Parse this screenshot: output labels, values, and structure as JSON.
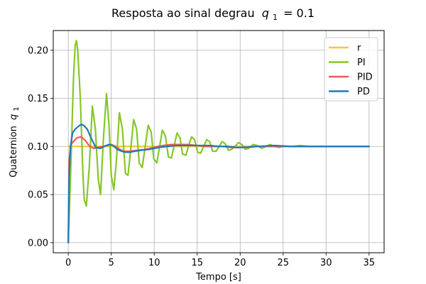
{
  "chart_data": {
    "type": "line",
    "title": "Resposta ao sinal degrau",
    "title_math_symbol": "q",
    "title_math_subscript": "1",
    "title_math_value": "= 0.1",
    "xlabel": "Tempo [s]",
    "ylabel": "Quaternion",
    "ylabel_math_symbol": "q",
    "ylabel_math_subscript": "1",
    "xlim": [
      -1.75,
      36.75
    ],
    "ylim": [
      -0.0105,
      0.2205
    ],
    "xticks": [
      0,
      5,
      10,
      15,
      20,
      25,
      30,
      35
    ],
    "xtick_labels": [
      "0",
      "5",
      "10",
      "15",
      "20",
      "25",
      "30",
      "35"
    ],
    "yticks": [
      0.0,
      0.05,
      0.1,
      0.15,
      0.2
    ],
    "ytick_labels": [
      "0.00",
      "0.05",
      "0.10",
      "0.15",
      "0.20"
    ],
    "grid": true,
    "legend_position": "top-right",
    "series": [
      {
        "name": "r",
        "color": "#f5c542",
        "x": [
          0,
          0.05,
          35
        ],
        "y": [
          0.1,
          0.1,
          0.1
        ]
      },
      {
        "name": "PI",
        "color": "#86c728",
        "x": [
          0,
          0.3,
          0.6,
          0.8,
          0.95,
          1.1,
          1.4,
          1.7,
          1.85,
          2.1,
          2.45,
          2.8,
          3.15,
          3.5,
          3.75,
          4.1,
          4.45,
          4.75,
          5.0,
          5.3,
          5.6,
          5.95,
          6.3,
          6.65,
          6.95,
          7.3,
          7.6,
          7.95,
          8.25,
          8.6,
          8.95,
          9.3,
          9.65,
          9.95,
          10.3,
          10.65,
          10.95,
          11.3,
          11.65,
          12.0,
          12.35,
          12.65,
          13.0,
          13.3,
          13.7,
          14.0,
          14.35,
          14.7,
          15.05,
          15.4,
          15.75,
          16.1,
          16.45,
          16.8,
          17.2,
          17.55,
          17.9,
          18.25,
          18.65,
          19.0,
          19.4,
          19.8,
          20.2,
          20.6,
          21.0,
          21.5,
          22.0,
          22.5,
          23.0,
          23.5,
          24.0,
          24.5,
          25.0,
          26.0,
          27.0,
          28.0,
          30.0,
          32.0,
          35.0
        ],
        "y": [
          0.0,
          0.08,
          0.17,
          0.205,
          0.21,
          0.2,
          0.15,
          0.072,
          0.045,
          0.038,
          0.08,
          0.142,
          0.118,
          0.065,
          0.05,
          0.11,
          0.155,
          0.12,
          0.07,
          0.055,
          0.085,
          0.135,
          0.118,
          0.072,
          0.07,
          0.1,
          0.128,
          0.118,
          0.083,
          0.078,
          0.1,
          0.122,
          0.115,
          0.087,
          0.083,
          0.101,
          0.117,
          0.111,
          0.089,
          0.088,
          0.102,
          0.114,
          0.109,
          0.092,
          0.091,
          0.101,
          0.11,
          0.107,
          0.094,
          0.093,
          0.1,
          0.107,
          0.105,
          0.095,
          0.095,
          0.1,
          0.105,
          0.103,
          0.096,
          0.097,
          0.1,
          0.104,
          0.102,
          0.097,
          0.098,
          0.102,
          0.101,
          0.098,
          0.1,
          0.102,
          0.1,
          0.099,
          0.1,
          0.1,
          0.101,
          0.1,
          0.1,
          0.1,
          0.1
        ]
      },
      {
        "name": "PID",
        "color": "#ef5a5a",
        "x": [
          0,
          0.1,
          0.3,
          0.6,
          1.0,
          1.5,
          2.0,
          2.5,
          3.0,
          3.5,
          4.0,
          4.5,
          5.0,
          5.5,
          6.0,
          6.5,
          7.0,
          8.0,
          9.0,
          10.0,
          11.0,
          12.0,
          13.0,
          14.0,
          15.0,
          16.0,
          17.0,
          18.0,
          19.0,
          20.0,
          22.0,
          24.0,
          26.0,
          28.0,
          30.0,
          32.0,
          35.0
        ],
        "y": [
          0.0,
          0.085,
          0.102,
          0.105,
          0.109,
          0.11,
          0.106,
          0.1,
          0.098,
          0.099,
          0.1,
          0.101,
          0.102,
          0.1,
          0.097,
          0.095,
          0.095,
          0.096,
          0.097,
          0.099,
          0.101,
          0.102,
          0.102,
          0.102,
          0.101,
          0.1,
          0.1,
          0.1,
          0.099,
          0.099,
          0.1,
          0.1,
          0.1,
          0.1,
          0.1,
          0.1,
          0.1
        ]
      },
      {
        "name": "PD",
        "color": "#1f7ab8",
        "x": [
          0,
          0.1,
          0.25,
          0.5,
          0.8,
          1.2,
          1.5,
          1.8,
          2.2,
          2.7,
          3.2,
          3.7,
          4.2,
          4.7,
          5.2,
          5.7,
          6.2,
          6.7,
          7.2,
          7.7,
          8.5,
          9.5,
          10.5,
          11.5,
          12.5,
          13.5,
          14.5,
          15.5,
          16.5,
          17.5,
          18.5,
          19.5,
          20.5,
          22.0,
          24.0,
          26.0,
          28.0,
          30.0,
          32.0,
          35.0
        ],
        "y": [
          0.0,
          0.07,
          0.1,
          0.114,
          0.118,
          0.121,
          0.123,
          0.122,
          0.118,
          0.108,
          0.099,
          0.098,
          0.1,
          0.102,
          0.101,
          0.097,
          0.095,
          0.094,
          0.094,
          0.095,
          0.096,
          0.097,
          0.099,
          0.1,
          0.101,
          0.101,
          0.101,
          0.101,
          0.101,
          0.1,
          0.1,
          0.099,
          0.099,
          0.1,
          0.101,
          0.1,
          0.1,
          0.1,
          0.1,
          0.1
        ]
      }
    ]
  }
}
